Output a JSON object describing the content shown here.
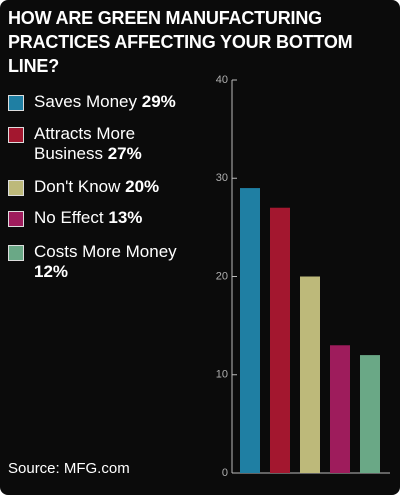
{
  "chart_data": {
    "type": "bar",
    "title": "HOW ARE GREEN MANUFACTURING PRACTICES AFFECTING YOUR BOTTOM LINE?",
    "categories": [
      "Saves Money",
      "Attracts More Business",
      "Don't Know",
      "No Effect",
      "Costs More Money"
    ],
    "values": [
      29,
      27,
      20,
      13,
      12
    ],
    "value_labels": [
      "29%",
      "27%",
      "20%",
      "13%",
      "12%"
    ],
    "colors": [
      "#1f7fa3",
      "#a3172f",
      "#bdb97a",
      "#9e1c5c",
      "#6aa886"
    ],
    "ylim": [
      0,
      40
    ],
    "yticks": [
      0,
      10,
      20,
      30,
      40
    ],
    "source": "Source: MFG.com"
  }
}
